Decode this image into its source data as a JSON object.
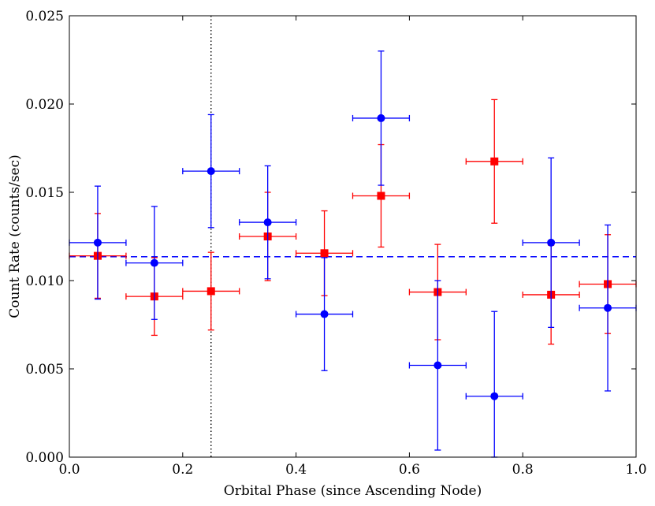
{
  "chart_data": {
    "type": "scatter",
    "title": "",
    "xlabel": "Orbital Phase (since Ascending Node)",
    "ylabel": "Count Rate (counts/sec)",
    "xlim": [
      0.0,
      1.0
    ],
    "ylim": [
      0.0,
      0.025
    ],
    "xticks": [
      0.0,
      0.2,
      0.4,
      0.6,
      0.8,
      1.0
    ],
    "xtick_labels": [
      "0.0",
      "0.2",
      "0.4",
      "0.6",
      "0.8",
      "1.0"
    ],
    "yticks": [
      0.0,
      0.005,
      0.01,
      0.015,
      0.02,
      0.025
    ],
    "ytick_labels": [
      "0.000",
      "0.005",
      "0.010",
      "0.015",
      "0.020",
      "0.025"
    ],
    "grid": false,
    "series": [
      {
        "name": "blue",
        "color": "#0000ff",
        "marker": "circle",
        "x": [
          0.05,
          0.15,
          0.25,
          0.35,
          0.45,
          0.55,
          0.65,
          0.75,
          0.85,
          0.95
        ],
        "xerr": [
          0.05,
          0.05,
          0.05,
          0.05,
          0.05,
          0.05,
          0.05,
          0.05,
          0.05,
          0.05
        ],
        "y": [
          0.01215,
          0.011,
          0.0162,
          0.0133,
          0.0081,
          0.0192,
          0.0052,
          0.00345,
          0.01215,
          0.00845
        ],
        "yerr": [
          0.0032,
          0.0032,
          0.0032,
          0.0032,
          0.0032,
          0.0038,
          0.0048,
          0.0048,
          0.0048,
          0.0047
        ]
      },
      {
        "name": "red",
        "color": "#ff0000",
        "marker": "square",
        "x": [
          0.05,
          0.15,
          0.25,
          0.35,
          0.45,
          0.55,
          0.65,
          0.75,
          0.85,
          0.95
        ],
        "xerr": [
          0.05,
          0.05,
          0.05,
          0.05,
          0.05,
          0.05,
          0.05,
          0.05,
          0.05,
          0.05
        ],
        "y": [
          0.0114,
          0.0091,
          0.0094,
          0.0125,
          0.01155,
          0.0148,
          0.00935,
          0.01675,
          0.0092,
          0.0098
        ],
        "yerr": [
          0.0024,
          0.0022,
          0.0022,
          0.0025,
          0.0024,
          0.0029,
          0.0027,
          0.0035,
          0.0028,
          0.0028
        ]
      }
    ],
    "reference_lines": [
      {
        "name": "mean-rate",
        "orientation": "horizontal",
        "value": 0.01135,
        "style": "dashed",
        "color": "#0000ff"
      },
      {
        "name": "phase-marker",
        "orientation": "vertical",
        "value": 0.25,
        "style": "dotted",
        "color": "#000000"
      }
    ]
  }
}
